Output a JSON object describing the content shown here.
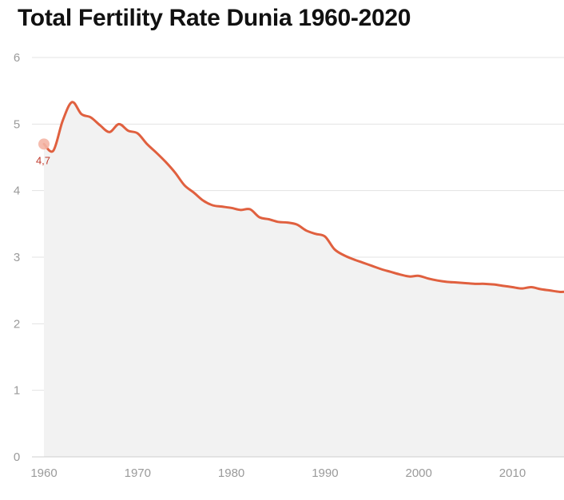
{
  "chart_data": {
    "type": "area",
    "title": "Total Fertility Rate Dunia 1960-2020",
    "xlabel": "",
    "ylabel": "",
    "xlim": [
      1960,
      2015.5
    ],
    "ylim": [
      0,
      6
    ],
    "x_ticks": [
      1960,
      1970,
      1980,
      1990,
      2000,
      2010
    ],
    "y_ticks": [
      0,
      1,
      2,
      3,
      4,
      5,
      6
    ],
    "grid": true,
    "legend": "none",
    "colors": {
      "line": "#e0603f",
      "area": "#f2f2f2",
      "grid": "#e3e3e3",
      "marker": "#f4b5a5",
      "annotation": "#c0392b"
    },
    "series": [
      {
        "x": [
          1960,
          1961,
          1962,
          1963,
          1964,
          1965,
          1966,
          1967,
          1968,
          1969,
          1970,
          1971,
          1972,
          1973,
          1974,
          1975,
          1976,
          1977,
          1978,
          1979,
          1980,
          1981,
          1982,
          1983,
          1984,
          1985,
          1986,
          1987,
          1988,
          1989,
          1990,
          1991,
          1992,
          1993,
          1994,
          1995,
          1996,
          1997,
          1998,
          1999,
          2000,
          2001,
          2002,
          2003,
          2004,
          2005,
          2006,
          2007,
          2008,
          2009,
          2010,
          2011,
          2012,
          2013,
          2014,
          2015,
          2015.5
        ],
        "values": [
          4.7,
          4.6,
          5.05,
          5.33,
          5.15,
          5.1,
          4.98,
          4.88,
          5.0,
          4.9,
          4.86,
          4.7,
          4.57,
          4.43,
          4.27,
          4.08,
          3.97,
          3.85,
          3.78,
          3.76,
          3.74,
          3.71,
          3.72,
          3.6,
          3.57,
          3.53,
          3.52,
          3.49,
          3.4,
          3.35,
          3.31,
          3.12,
          3.03,
          2.97,
          2.92,
          2.87,
          2.82,
          2.78,
          2.74,
          2.71,
          2.72,
          2.68,
          2.65,
          2.63,
          2.62,
          2.61,
          2.6,
          2.6,
          2.59,
          2.57,
          2.55,
          2.53,
          2.55,
          2.52,
          2.5,
          2.48,
          2.48
        ]
      }
    ],
    "annotation": {
      "x": 1960,
      "y": 4.7,
      "label": "4,7"
    }
  }
}
